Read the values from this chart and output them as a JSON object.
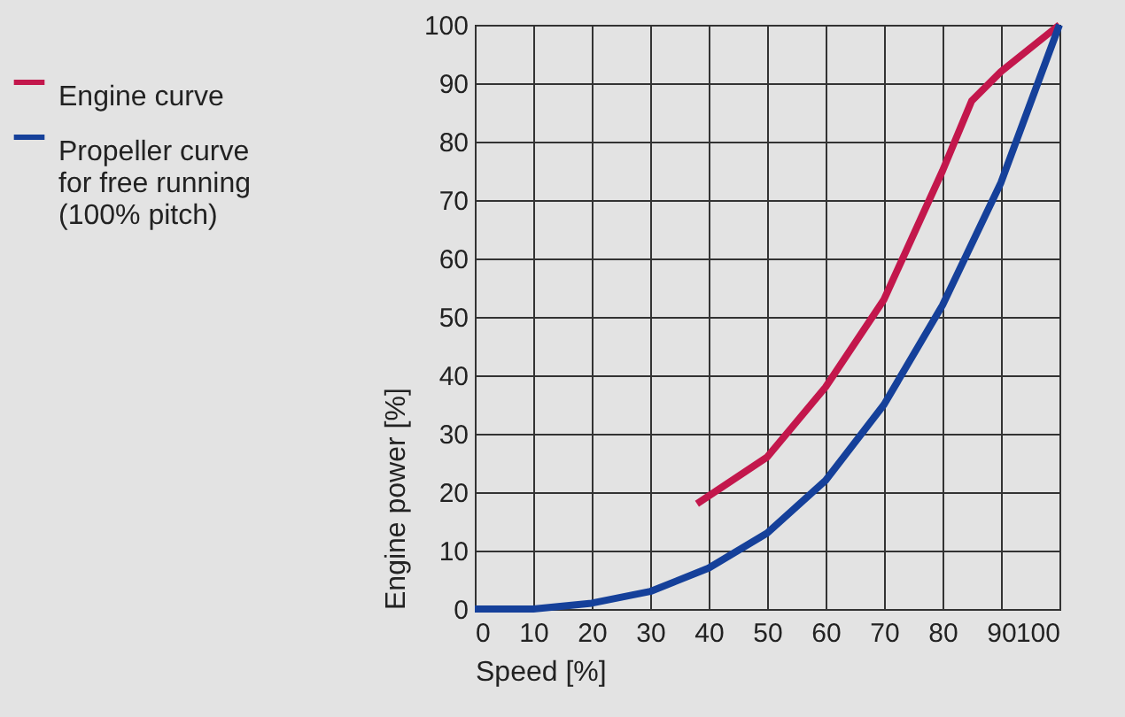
{
  "chart_data": {
    "type": "line",
    "xlabel": "Speed [%]",
    "ylabel": "Engine power [%]",
    "xlim": [
      0,
      100
    ],
    "ylim": [
      0,
      100
    ],
    "xticks": [
      0,
      10,
      20,
      30,
      40,
      50,
      60,
      70,
      80,
      90,
      100
    ],
    "yticks": [
      0,
      10,
      20,
      30,
      40,
      50,
      60,
      70,
      80,
      90,
      100
    ],
    "grid": true,
    "legend": "left",
    "series": [
      {
        "name": "Engine curve",
        "color": "#c3174c",
        "x": [
          38,
          50,
          60,
          70,
          80,
          85,
          90,
          100
        ],
        "values": [
          18,
          26,
          38,
          53,
          75,
          87,
          92,
          100
        ]
      },
      {
        "name": "Propeller curve for free running (100% pitch)",
        "color": "#15409a",
        "x": [
          0,
          10,
          20,
          30,
          40,
          50,
          60,
          70,
          80,
          90,
          100
        ],
        "values": [
          0,
          0,
          1,
          3,
          7,
          13,
          22,
          35,
          52,
          73,
          100
        ]
      }
    ]
  }
}
